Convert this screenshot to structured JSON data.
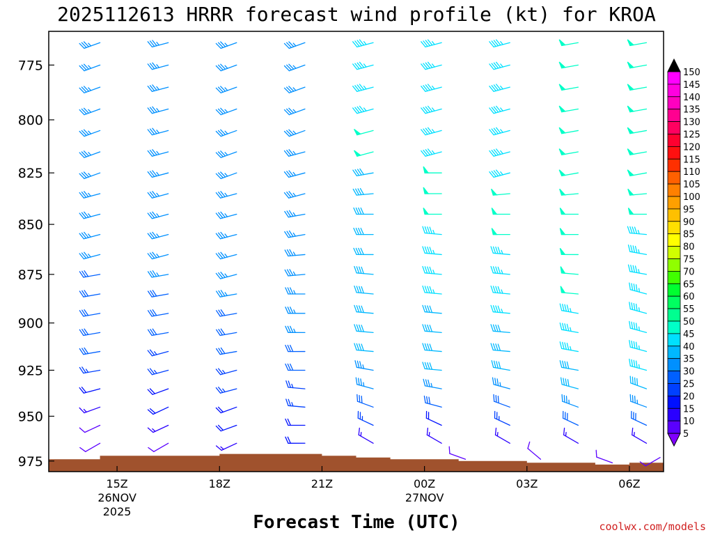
{
  "chart_data": {
    "type": "wind-barb-profile",
    "title": "2025112613 HRRR forecast wind profile (kt) for KROA",
    "xlabel": "Forecast Time (UTC)",
    "watermark": "coolwx.com/models",
    "yaxis": {
      "ticks": [
        775,
        800,
        825,
        850,
        875,
        900,
        925,
        950,
        975
      ],
      "range": [
        981,
        760
      ],
      "units": "hPa"
    },
    "xaxis": {
      "ticks": [
        {
          "t": 15,
          "lines": [
            "15Z",
            "26NOV",
            "2025"
          ]
        },
        {
          "t": 18,
          "lines": [
            "18Z"
          ]
        },
        {
          "t": 21,
          "lines": [
            "21Z"
          ]
        },
        {
          "t": 24,
          "lines": [
            "00Z",
            "27NOV"
          ]
        },
        {
          "t": 27,
          "lines": [
            "03Z"
          ]
        },
        {
          "t": 30,
          "lines": [
            "06Z"
          ]
        }
      ],
      "range": [
        13,
        31
      ]
    },
    "colorbar": {
      "values": [
        5,
        10,
        15,
        20,
        25,
        30,
        35,
        40,
        45,
        50,
        55,
        60,
        65,
        70,
        75,
        80,
        85,
        90,
        95,
        100,
        105,
        110,
        115,
        120,
        125,
        130,
        135,
        140,
        145,
        150
      ],
      "colors": [
        "#8000ff",
        "#5a00ff",
        "#2a00ff",
        "#0010ff",
        "#0040ff",
        "#0060ff",
        "#0090ff",
        "#00b8ff",
        "#00e0ff",
        "#00ffc8",
        "#00ff90",
        "#00ff60",
        "#00ff30",
        "#40ff00",
        "#90ff00",
        "#d0ff00",
        "#ffff00",
        "#ffe000",
        "#ffc000",
        "#ffa000",
        "#ff8000",
        "#ff6000",
        "#ff3000",
        "#ff1010",
        "#ff0030",
        "#ff0060",
        "#ff0090",
        "#ff00c0",
        "#ff00e0",
        "#ff00ff"
      ],
      "top_arrow_color": "#000000"
    },
    "levels": [
      765,
      775,
      785,
      795,
      805,
      815,
      825,
      835,
      845,
      855,
      865,
      875,
      885,
      895,
      905,
      915,
      925,
      935,
      945,
      955,
      965
    ],
    "columns": [
      {
        "t": 14.5,
        "speeds": [
          35,
          35,
          35,
          35,
          35,
          35,
          35,
          35,
          35,
          35,
          35,
          30,
          30,
          30,
          30,
          30,
          25,
          20,
          15,
          10,
          10
        ],
        "dirs": [
          250,
          250,
          250,
          250,
          250,
          250,
          250,
          255,
          255,
          255,
          255,
          260,
          260,
          260,
          260,
          260,
          260,
          255,
          250,
          245,
          240
        ]
      },
      {
        "t": 16.5,
        "speeds": [
          35,
          35,
          35,
          35,
          35,
          35,
          35,
          35,
          35,
          35,
          35,
          35,
          30,
          30,
          30,
          25,
          25,
          20,
          20,
          15,
          10
        ],
        "dirs": [
          255,
          255,
          255,
          255,
          255,
          255,
          255,
          255,
          255,
          255,
          255,
          260,
          260,
          260,
          260,
          255,
          255,
          250,
          245,
          245,
          240
        ]
      },
      {
        "t": 18.5,
        "speeds": [
          35,
          35,
          35,
          35,
          35,
          35,
          35,
          35,
          35,
          35,
          35,
          35,
          35,
          30,
          30,
          30,
          25,
          25,
          20,
          20,
          15
        ],
        "dirs": [
          250,
          250,
          250,
          250,
          250,
          250,
          250,
          255,
          255,
          255,
          255,
          255,
          260,
          260,
          260,
          260,
          255,
          255,
          250,
          250,
          245
        ]
      },
      {
        "t": 20.5,
        "speeds": [
          35,
          35,
          35,
          35,
          35,
          35,
          35,
          35,
          35,
          35,
          35,
          35,
          35,
          35,
          35,
          30,
          30,
          25,
          25,
          20,
          20
        ],
        "dirs": [
          250,
          250,
          250,
          250,
          250,
          255,
          255,
          255,
          260,
          260,
          265,
          265,
          270,
          270,
          270,
          270,
          270,
          275,
          275,
          270,
          270
        ]
      },
      {
        "t": 22.5,
        "speeds": [
          45,
          45,
          45,
          45,
          50,
          50,
          40,
          40,
          40,
          40,
          40,
          40,
          40,
          40,
          40,
          40,
          35,
          35,
          30,
          25,
          15
        ],
        "dirs": [
          255,
          255,
          255,
          255,
          255,
          255,
          260,
          265,
          270,
          270,
          270,
          275,
          275,
          275,
          275,
          275,
          280,
          285,
          290,
          295,
          300
        ]
      },
      {
        "t": 24.5,
        "speeds": [
          45,
          45,
          45,
          45,
          45,
          45,
          50,
          50,
          50,
          45,
          45,
          45,
          45,
          40,
          40,
          40,
          40,
          35,
          30,
          20,
          15
        ],
        "dirs": [
          255,
          255,
          255,
          255,
          255,
          255,
          270,
          270,
          270,
          275,
          275,
          275,
          275,
          275,
          275,
          275,
          275,
          280,
          285,
          295,
          300
        ]
      },
      {
        "t": 26.5,
        "speeds": [
          45,
          45,
          45,
          45,
          45,
          45,
          45,
          50,
          50,
          50,
          45,
          45,
          45,
          45,
          40,
          40,
          40,
          35,
          30,
          25,
          15
        ],
        "dirs": [
          255,
          255,
          255,
          255,
          255,
          255,
          255,
          265,
          270,
          270,
          275,
          275,
          275,
          275,
          275,
          275,
          280,
          285,
          290,
          295,
          300
        ]
      },
      {
        "t": 28.5,
        "speeds": [
          50,
          50,
          50,
          50,
          50,
          50,
          50,
          50,
          50,
          50,
          50,
          50,
          50,
          45,
          45,
          45,
          40,
          40,
          35,
          30,
          15
        ],
        "dirs": [
          260,
          260,
          260,
          260,
          260,
          260,
          260,
          265,
          270,
          270,
          270,
          275,
          275,
          280,
          280,
          280,
          280,
          285,
          290,
          295,
          300
        ]
      },
      {
        "t": 30.5,
        "speeds": [
          50,
          50,
          50,
          50,
          50,
          50,
          50,
          50,
          50,
          45,
          45,
          45,
          45,
          45,
          45,
          45,
          45,
          40,
          35,
          30,
          15
        ],
        "dirs": [
          260,
          260,
          260,
          260,
          260,
          260,
          260,
          265,
          270,
          275,
          280,
          280,
          285,
          285,
          285,
          285,
          285,
          290,
          290,
          295,
          300
        ]
      }
    ],
    "surface_barbs": [
      {
        "t": 25.2,
        "p": 974,
        "speed": 10,
        "dir": 290
      },
      {
        "t": 27.4,
        "p": 974,
        "speed": 10,
        "dir": 310
      },
      {
        "t": 29.5,
        "p": 976,
        "speed": 10,
        "dir": 290
      },
      {
        "t": 30.9,
        "p": 973,
        "speed": 10,
        "dir": 240
      }
    ],
    "terrain_color": "#a0522d",
    "terrain": [
      {
        "t0": 13.0,
        "t1": 14.5,
        "p": 974
      },
      {
        "t0": 14.5,
        "t1": 18.0,
        "p": 972
      },
      {
        "t0": 18.0,
        "t1": 21.0,
        "p": 971
      },
      {
        "t0": 21.0,
        "t1": 22.0,
        "p": 972
      },
      {
        "t0": 22.0,
        "t1": 23.0,
        "p": 973
      },
      {
        "t0": 23.0,
        "t1": 25.0,
        "p": 974
      },
      {
        "t0": 25.0,
        "t1": 27.0,
        "p": 975
      },
      {
        "t0": 27.0,
        "t1": 29.0,
        "p": 976
      },
      {
        "t0": 29.0,
        "t1": 30.0,
        "p": 977
      },
      {
        "t0": 30.0,
        "t1": 31.0,
        "p": 976
      }
    ]
  }
}
